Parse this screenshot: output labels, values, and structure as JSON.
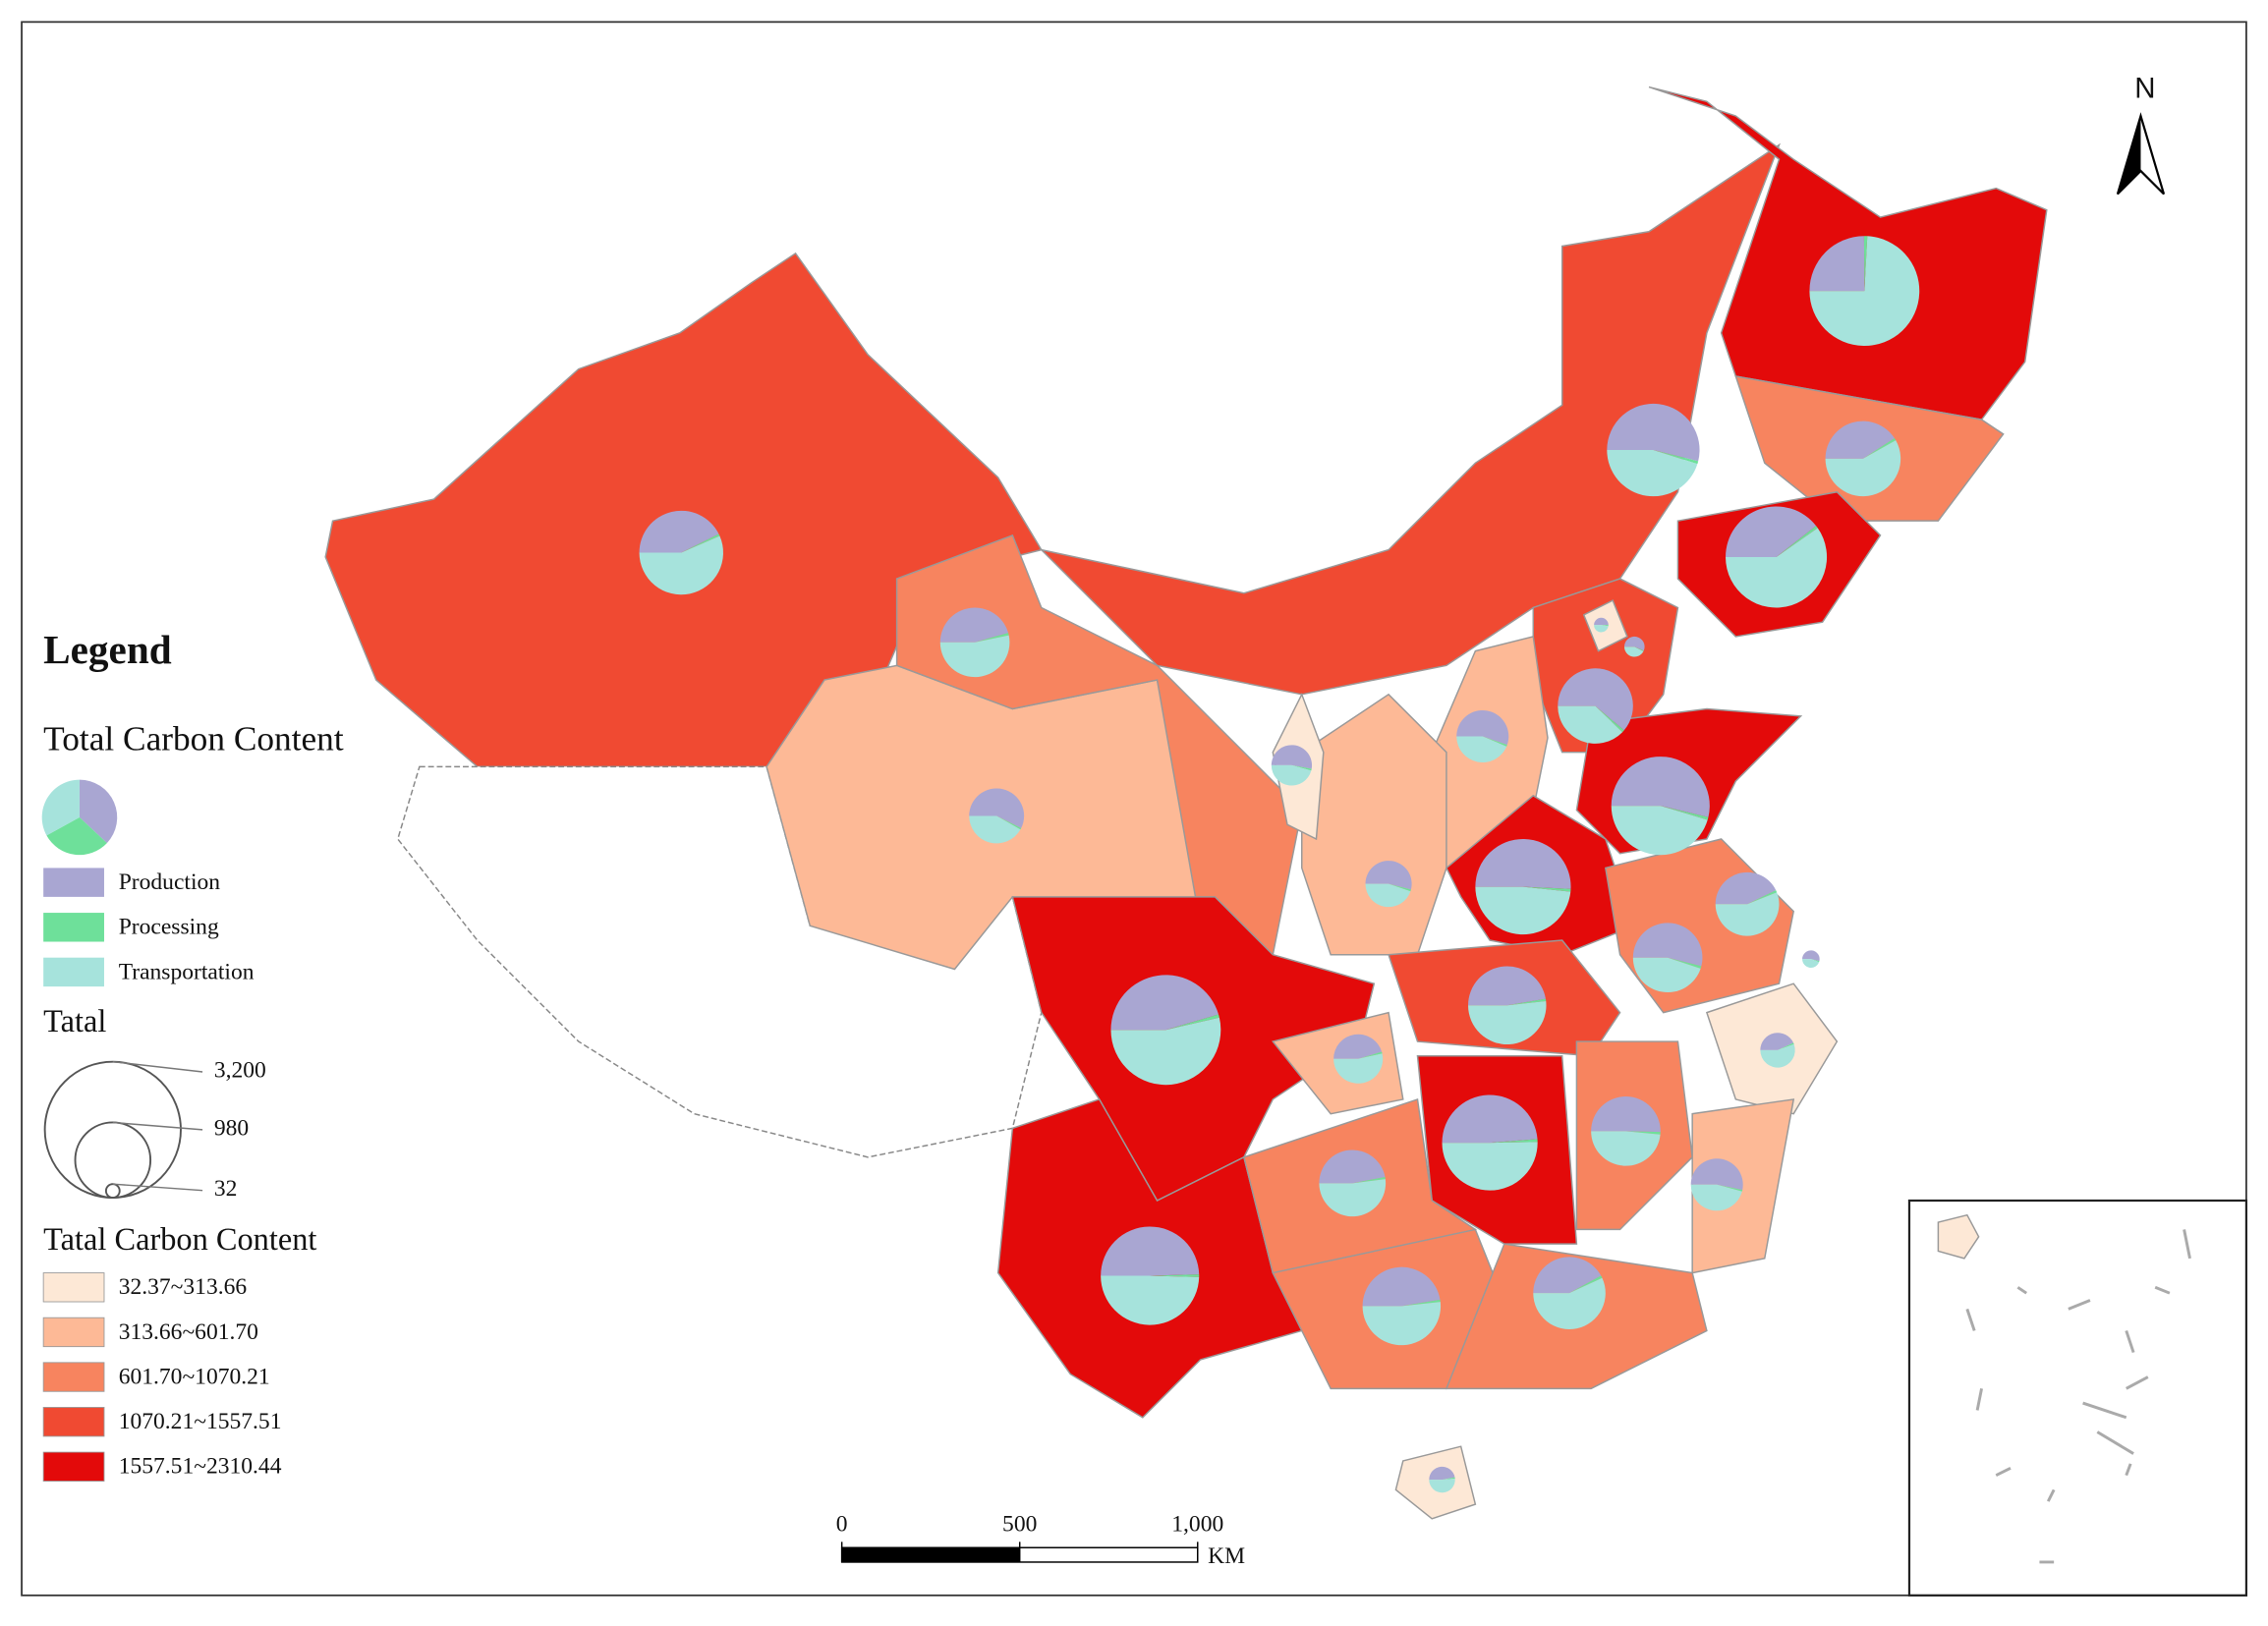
{
  "north": "N",
  "legend": {
    "title": "Legend",
    "pie_title": "Total Carbon Content",
    "categories": [
      {
        "name": "Production",
        "color": "#a9a6d2"
      },
      {
        "name": "Processing",
        "color": "#6ee09a"
      },
      {
        "name": "Transportation",
        "color": "#a6e3dc"
      }
    ],
    "size_title": "Tatal",
    "size_ticks": [
      {
        "value": 3200,
        "label": "3,200"
      },
      980,
      32
    ],
    "class_title": "Tatal Carbon Content",
    "classes": [
      {
        "label": "32.37~313.66",
        "color": "#fde8d6"
      },
      {
        "label": "313.66~601.70",
        "color": "#fdb996"
      },
      {
        "label": "601.70~1070.21",
        "color": "#f7845f"
      },
      {
        "label": "1070.21~1557.51",
        "color": "#f04a32"
      },
      {
        "label": "1557.51~2310.44",
        "color": "#e30a0a"
      }
    ]
  },
  "scale_bar": {
    "ticks": [
      0,
      500,
      {
        "value": 1000,
        "label": "1,000"
      }
    ],
    "unit": "KM"
  },
  "pies": [
    {
      "values": [
        520,
        20,
        1550
      ]
    },
    {
      "values": [
        800,
        15,
        670
      ]
    },
    {
      "values": [
        400,
        10,
        570
      ]
    },
    {
      "values": [
        700,
        15,
        1060
      ]
    },
    {
      "values": [
        520,
        10,
        690
      ]
    },
    {
      "values": [
        380,
        10,
        444
      ]
    },
    {
      "values": [
        18,
        1,
        17
      ]
    },
    {
      "values": [
        40,
        1,
        30
      ]
    },
    {
      "values": [
        600,
        10,
        370
      ]
    },
    {
      "values": [
        260,
        5,
        205
      ]
    },
    {
      "values": [
        900,
        15,
        760
      ]
    },
    {
      "values": [
        150,
        4,
        130
      ]
    },
    {
      "values": [
        300,
        5,
        218
      ]
    },
    {
      "values": [
        200,
        5,
        166
      ]
    },
    {
      "values": [
        800,
        15,
        763
      ]
    },
    {
      "values": [
        300,
        8,
        393
      ]
    },
    {
      "values": [
        450,
        10,
        374
      ]
    },
    {
      "values": [
        28,
        1,
        23
      ]
    },
    {
      "values": [
        500,
        10,
        546
      ]
    },
    {
      "values": [
        950,
        20,
        1120
      ]
    },
    {
      "values": [
        190,
        5,
        224
      ]
    },
    {
      "values": [
        90,
        3,
        116
      ]
    },
    {
      "values": [
        770,
        15,
        793
      ]
    },
    {
      "values": [
        420,
        10,
        404
      ]
    },
    {
      "values": [
        360,
        8,
        398
      ]
    },
    {
      "values": [
        250,
        5,
        215
      ]
    },
    {
      "values": [
        830,
        15,
        830
      ]
    },
    {
      "values": [
        500,
        10,
        546
      ]
    },
    {
      "values": [
        380,
        10,
        515
      ]
    },
    {
      "values": [
        55,
        2,
        60
      ]
    }
  ]
}
